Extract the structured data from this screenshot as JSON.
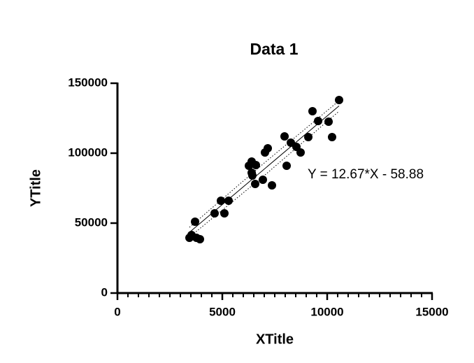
{
  "chart_data": {
    "type": "scatter",
    "title": "Data 1",
    "x_label": "XTitle",
    "y_label": "YTitle",
    "annotation": "Y = 12.67*X - 58.88",
    "series": [
      {
        "name": "Data 1",
        "color": "#000000",
        "x": [
          3433,
          3533,
          3700,
          3767,
          3933,
          4633,
          4933,
          5100,
          5300,
          6267,
          6400,
          6400,
          6433,
          6600,
          6567,
          6933,
          7033,
          7167,
          7367,
          7967,
          8067,
          8267,
          8533,
          8733,
          9100,
          9300,
          9567,
          10067,
          10233,
          10567
        ],
        "values": [
          39500,
          41500,
          51000,
          39500,
          38500,
          57000,
          66000,
          57000,
          66000,
          91000,
          94000,
          86000,
          84000,
          91500,
          78000,
          81000,
          100500,
          103500,
          77000,
          112000,
          91000,
          107500,
          104500,
          100500,
          111500,
          130000,
          123000,
          122500,
          111500,
          138000
        ]
      }
    ],
    "fit": {
      "x": [
        3433,
        10567
      ],
      "y": [
        43438,
        133825
      ]
    },
    "confidence_band": {
      "x": [
        3433,
        7000,
        10567
      ],
      "upper": [
        47000,
        93000,
        137500
      ],
      "lower": [
        40000,
        84000,
        130000
      ]
    },
    "xlim": [
      0,
      15000
    ],
    "xticks": [
      0,
      5000,
      10000,
      15000
    ],
    "xminorticks": [
      500,
      1000,
      1500,
      2000,
      2500,
      3000,
      3500,
      4000,
      4500,
      5500,
      6000,
      6500,
      7000,
      7500,
      8000,
      8500,
      9000,
      9500,
      10500,
      11000,
      11500,
      12000,
      12500,
      13000,
      13500,
      14000,
      14500
    ],
    "ylim": [
      0,
      150000
    ],
    "yticks": [
      0,
      50000,
      100000,
      150000
    ],
    "grid": false
  }
}
